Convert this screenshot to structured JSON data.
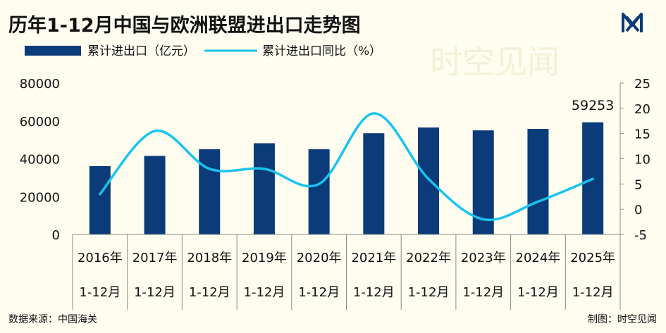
{
  "watermark": "时空见闻",
  "footer": {
    "source": "数据来源：中国海关",
    "credit": "制图：时空见闻"
  },
  "colors": {
    "background": "#FEFDF0",
    "bar": "#0B3B78",
    "line": "#19C3F0",
    "text": "#111111",
    "axis": "#8A8A8A"
  },
  "chart_data": {
    "type": "bar",
    "title": "历年1-12月中国与欧洲联盟进出口走势图",
    "categories": [
      [
        "2016年",
        "1-12月"
      ],
      [
        "2017年",
        "1-12月"
      ],
      [
        "2018年",
        "1-12月"
      ],
      [
        "2019年",
        "1-12月"
      ],
      [
        "2020年",
        "1-12月"
      ],
      [
        "2021年",
        "1-12月"
      ],
      [
        "2022年",
        "1-12月"
      ],
      [
        "2023年",
        "1-12月"
      ],
      [
        "2024年",
        "1-12月"
      ],
      [
        "2025年",
        "1-12月"
      ]
    ],
    "series": [
      {
        "name": "累计进出口（亿元）",
        "type": "bar",
        "axis": "left",
        "values": [
          36100,
          41500,
          45000,
          48200,
          45000,
          53500,
          56500,
          55000,
          55800,
          59253
        ]
      },
      {
        "name": "累计进出口同比（%）",
        "type": "line",
        "axis": "right",
        "values": [
          3,
          15.5,
          8,
          8,
          5,
          19,
          6,
          -2,
          1.5,
          6
        ]
      }
    ],
    "annotations": [
      {
        "series": 0,
        "index": 9,
        "text": "59253"
      }
    ],
    "y_left": {
      "min": 0,
      "max": 80000,
      "ticks": [
        0,
        20000,
        40000,
        60000,
        80000
      ]
    },
    "y_right": {
      "min": -5,
      "max": 25,
      "ticks": [
        -5,
        0,
        5,
        10,
        15,
        20,
        25
      ]
    },
    "legend": "top-left",
    "grid": false
  }
}
